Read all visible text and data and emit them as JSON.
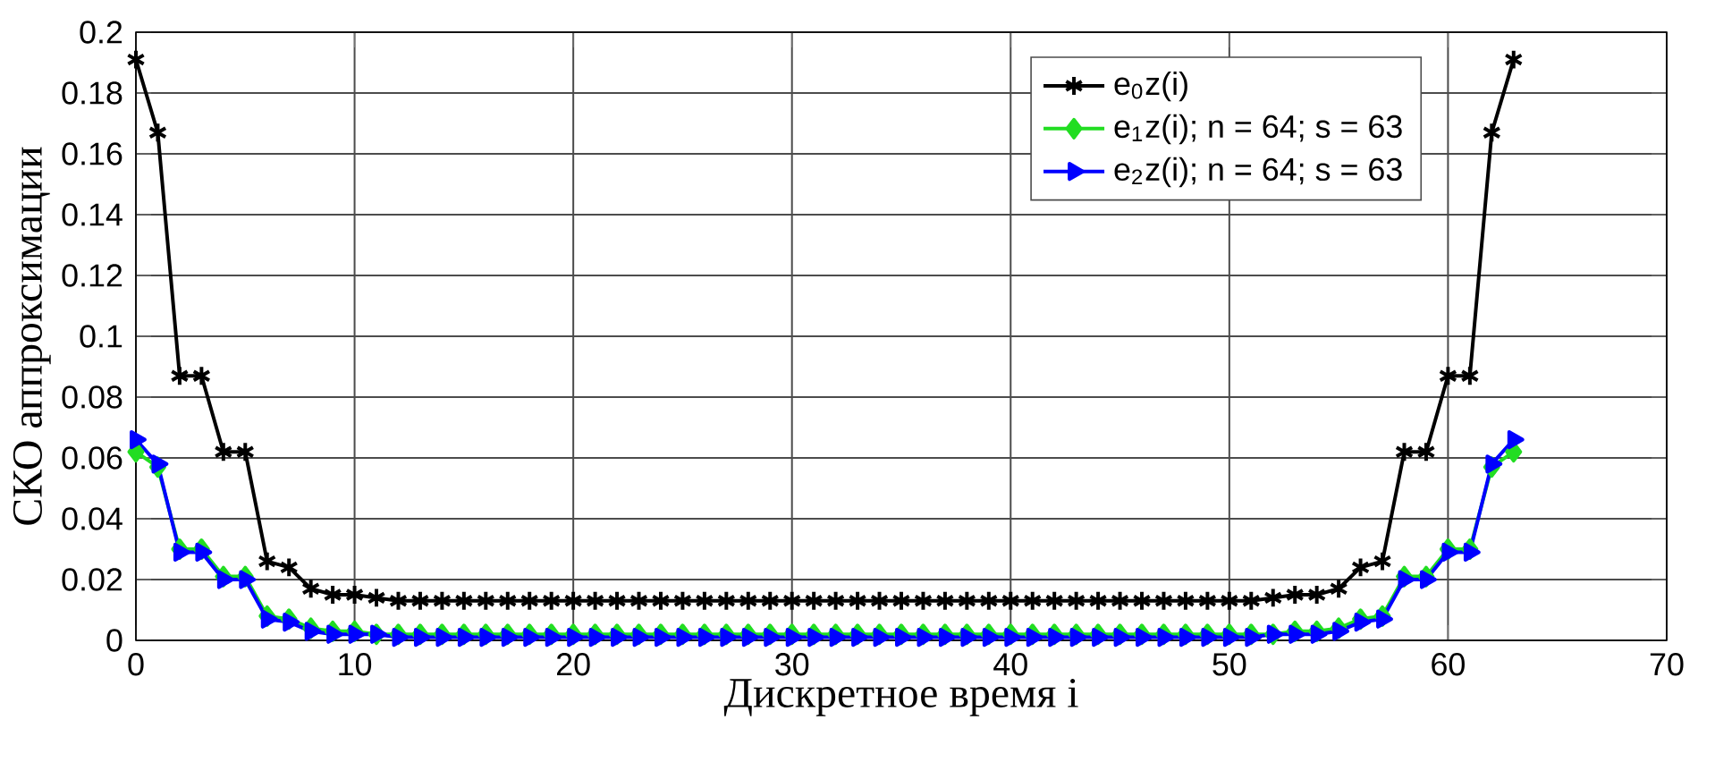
{
  "chart_data": {
    "type": "line",
    "xlabel": "Дискретное время  i",
    "ylabel": "СКО аппроксимации",
    "x": [
      0,
      1,
      2,
      3,
      4,
      5,
      6,
      7,
      8,
      9,
      10,
      11,
      12,
      13,
      14,
      15,
      16,
      17,
      18,
      19,
      20,
      21,
      22,
      23,
      24,
      25,
      26,
      27,
      28,
      29,
      30,
      31,
      32,
      33,
      34,
      35,
      36,
      37,
      38,
      39,
      40,
      41,
      42,
      43,
      44,
      45,
      46,
      47,
      48,
      49,
      50,
      51,
      52,
      53,
      54,
      55,
      56,
      57,
      58,
      59,
      60,
      61,
      62,
      63
    ],
    "series": [
      {
        "name": "e$_{0}$z(i)",
        "color": "#000000",
        "marker": "cross",
        "values": [
          0.191,
          0.167,
          0.087,
          0.087,
          0.062,
          0.062,
          0.026,
          0.024,
          0.017,
          0.015,
          0.015,
          0.014,
          0.013,
          0.013,
          0.013,
          0.013,
          0.013,
          0.013,
          0.013,
          0.013,
          0.013,
          0.013,
          0.013,
          0.013,
          0.013,
          0.013,
          0.013,
          0.013,
          0.013,
          0.013,
          0.013,
          0.013,
          0.013,
          0.013,
          0.013,
          0.013,
          0.013,
          0.013,
          0.013,
          0.013,
          0.013,
          0.013,
          0.013,
          0.013,
          0.013,
          0.013,
          0.013,
          0.013,
          0.013,
          0.013,
          0.013,
          0.013,
          0.014,
          0.015,
          0.015,
          0.017,
          0.024,
          0.026,
          0.062,
          0.062,
          0.087,
          0.087,
          0.167,
          0.191
        ]
      },
      {
        "name": "e$_{1}$z(i); n =  64; s =  63",
        "color": "#22dd22",
        "marker": "diamond",
        "values": [
          0.062,
          0.057,
          0.03,
          0.03,
          0.021,
          0.021,
          0.008,
          0.007,
          0.004,
          0.003,
          0.003,
          0.002,
          0.002,
          0.002,
          0.002,
          0.002,
          0.002,
          0.002,
          0.002,
          0.002,
          0.002,
          0.002,
          0.002,
          0.002,
          0.002,
          0.002,
          0.002,
          0.002,
          0.002,
          0.002,
          0.002,
          0.002,
          0.002,
          0.002,
          0.002,
          0.002,
          0.002,
          0.002,
          0.002,
          0.002,
          0.002,
          0.002,
          0.002,
          0.002,
          0.002,
          0.002,
          0.002,
          0.002,
          0.002,
          0.002,
          0.002,
          0.002,
          0.002,
          0.003,
          0.003,
          0.004,
          0.007,
          0.008,
          0.021,
          0.021,
          0.03,
          0.03,
          0.057,
          0.062
        ]
      },
      {
        "name": "e$_{2}$z(i); n =  64; s =  63",
        "color": "#0000ff",
        "marker": "triangle",
        "values": [
          0.066,
          0.058,
          0.029,
          0.029,
          0.02,
          0.02,
          0.007,
          0.006,
          0.003,
          0.002,
          0.002,
          0.002,
          0.001,
          0.001,
          0.001,
          0.001,
          0.001,
          0.001,
          0.001,
          0.001,
          0.001,
          0.001,
          0.001,
          0.001,
          0.001,
          0.001,
          0.001,
          0.001,
          0.001,
          0.001,
          0.001,
          0.001,
          0.001,
          0.001,
          0.001,
          0.001,
          0.001,
          0.001,
          0.001,
          0.001,
          0.001,
          0.001,
          0.001,
          0.001,
          0.001,
          0.001,
          0.001,
          0.001,
          0.001,
          0.001,
          0.001,
          0.001,
          0.002,
          0.002,
          0.002,
          0.003,
          0.006,
          0.007,
          0.02,
          0.02,
          0.029,
          0.029,
          0.058,
          0.066
        ]
      }
    ],
    "xlim": [
      0,
      70
    ],
    "xticks": [
      0,
      10,
      20,
      30,
      40,
      50,
      60,
      70
    ],
    "ylim": [
      0,
      0.2
    ],
    "yticks": [
      0,
      0.02,
      0.04,
      0.06,
      0.08,
      0.1,
      0.12,
      0.14,
      0.16,
      0.18,
      0.2
    ],
    "grid": true,
    "legend": "top right",
    "line_style": "solid"
  }
}
